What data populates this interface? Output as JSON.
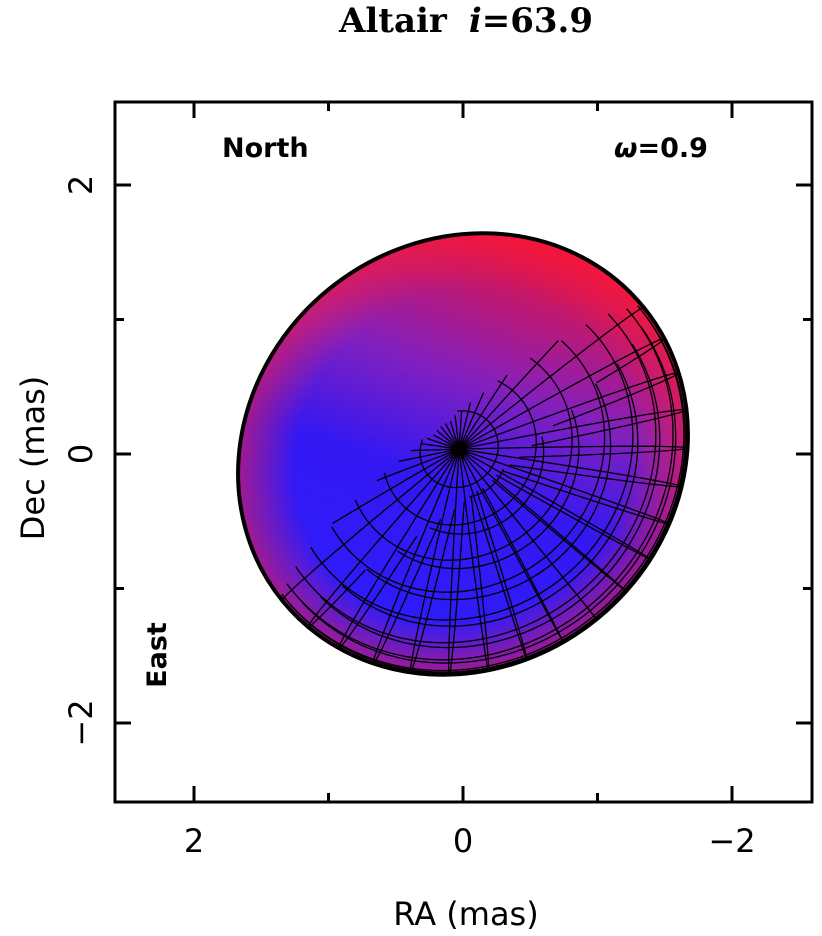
{
  "title": {
    "star": "Altair",
    "inclination_symbol": "i",
    "inclination_text": "=63.9"
  },
  "axes": {
    "xlabel": "RA (mas)",
    "ylabel": "Dec (mas)",
    "xlim": [
      2.5,
      -2.5
    ],
    "ylim": [
      -2.6,
      2.5
    ],
    "x_ticks": [
      {
        "value": 2,
        "label": "2"
      },
      {
        "value": 0,
        "label": "0"
      },
      {
        "value": -2,
        "label": "−2"
      }
    ],
    "y_ticks": [
      {
        "value": 2,
        "label": "2"
      },
      {
        "value": 0,
        "label": "0"
      },
      {
        "value": -2,
        "label": "−2"
      }
    ],
    "minor_tick_step": 1
  },
  "annotations": {
    "north": "North",
    "east": "East",
    "omega_symbol": "ω",
    "omega_text": "=0.9"
  },
  "star_model": {
    "projected_shape": "ellipse",
    "center": [
      0,
      0
    ],
    "semi_major_mas": 1.73,
    "semi_minor_mas": 1.58,
    "major_axis_pa_deg": -39,
    "visible_pole": [
      1.14,
      -0.79
    ],
    "center_marker": "+",
    "colors": {
      "hot_pole": "#2a1dff",
      "mid": "#7a26c8",
      "cool_equator": "#e8123a",
      "limb": "#000000",
      "grid": "#000000"
    }
  }
}
